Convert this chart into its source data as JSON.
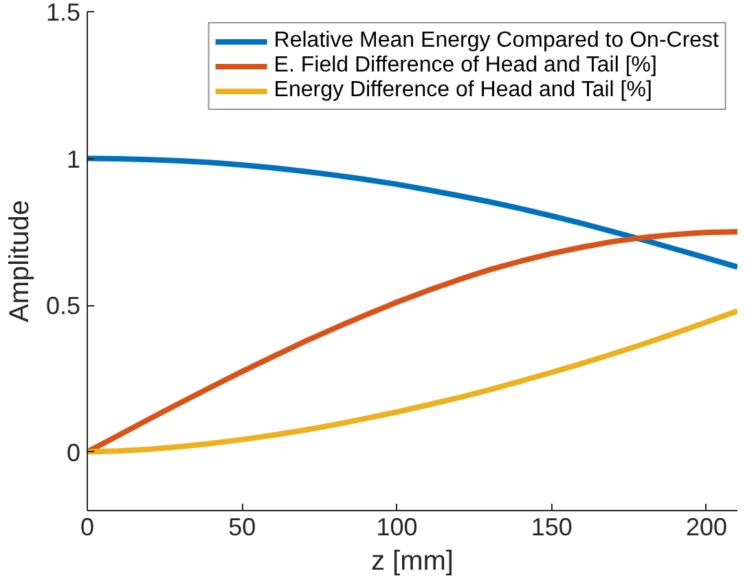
{
  "chart_data": {
    "type": "line",
    "xlabel": "z [mm]",
    "ylabel": "Amplitude",
    "x": [
      0,
      10,
      20,
      30,
      40,
      50,
      60,
      70,
      80,
      90,
      100,
      110,
      120,
      130,
      140,
      150,
      160,
      170,
      180,
      190,
      200,
      210
    ],
    "series": [
      {
        "name": "Relative Mean Energy Compared to On-Crest",
        "color": "#0072bd",
        "values": [
          1,
          0.999,
          0.996,
          0.992,
          0.986,
          0.978,
          0.968,
          0.956,
          0.943,
          0.928,
          0.912,
          0.893,
          0.873,
          0.852,
          0.829,
          0.804,
          0.778,
          0.75,
          0.721,
          0.691,
          0.661,
          0.63
        ]
      },
      {
        "name": "E. Field Difference of Head and Tail [%]",
        "color": "#d95319",
        "values": [
          0,
          0.056,
          0.112,
          0.167,
          0.221,
          0.274,
          0.325,
          0.375,
          0.422,
          0.467,
          0.51,
          0.55,
          0.587,
          0.621,
          0.65,
          0.676,
          0.698,
          0.717,
          0.731,
          0.741,
          0.748,
          0.75
        ]
      },
      {
        "name": "Energy Difference of Head and Tail [%]",
        "color": "#edb120",
        "values": [
          0,
          0.003,
          0.009,
          0.018,
          0.029,
          0.042,
          0.057,
          0.074,
          0.093,
          0.114,
          0.136,
          0.16,
          0.185,
          0.212,
          0.241,
          0.271,
          0.302,
          0.335,
          0.369,
          0.405,
          0.442,
          0.48
        ]
      }
    ],
    "xlim": [
      0,
      210
    ],
    "ylim": [
      -0.2,
      1.5
    ],
    "xticks": [
      0,
      50,
      100,
      150,
      200
    ],
    "yticks": [
      0,
      0.5,
      1,
      1.5
    ],
    "grid": false,
    "legend": "top right",
    "marker": "none",
    "line_style": "solid"
  }
}
